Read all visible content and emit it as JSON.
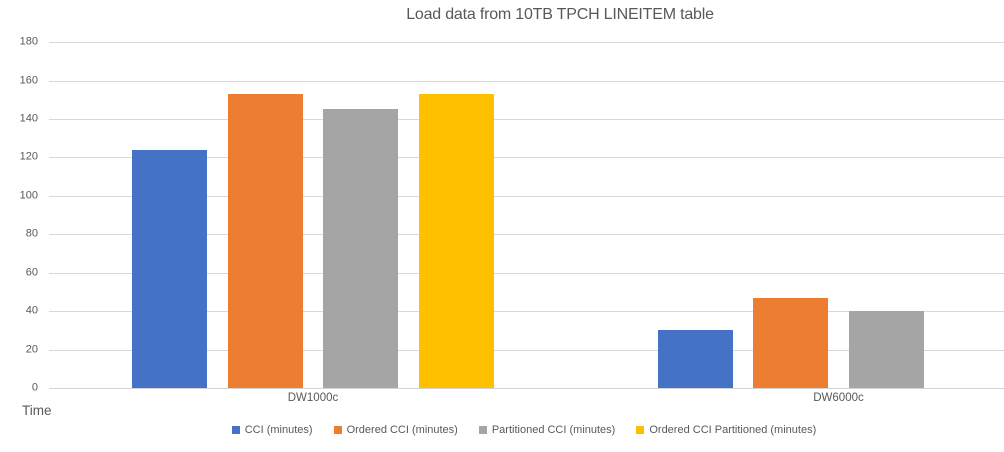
{
  "chart_data": {
    "type": "bar",
    "title": "Load data from 10TB TPCH LINEITEM table",
    "ylabel": "Time",
    "xlabel": "",
    "categories": [
      "DW1000c",
      "DW6000c"
    ],
    "series": [
      {
        "name": "CCI (minutes)",
        "color": "#4472C4",
        "values": [
          124,
          30
        ]
      },
      {
        "name": "Ordered CCI (minutes)",
        "color": "#ED7D31",
        "values": [
          153,
          47
        ]
      },
      {
        "name": "Partitioned CCI (minutes)",
        "color": "#A5A5A5",
        "values": [
          145,
          40
        ]
      },
      {
        "name": "Ordered CCI Partitioned (minutes)",
        "color": "#FFC000",
        "values": [
          153,
          null
        ]
      }
    ],
    "ylim": [
      0,
      180
    ],
    "ytick_step": 20,
    "yticks": [
      0,
      20,
      40,
      60,
      80,
      100,
      120,
      140,
      160,
      180
    ],
    "grid": true,
    "legend_position": "bottom",
    "colors": {
      "gridline": "#D9D9D9",
      "axis_text": "#595959"
    }
  }
}
